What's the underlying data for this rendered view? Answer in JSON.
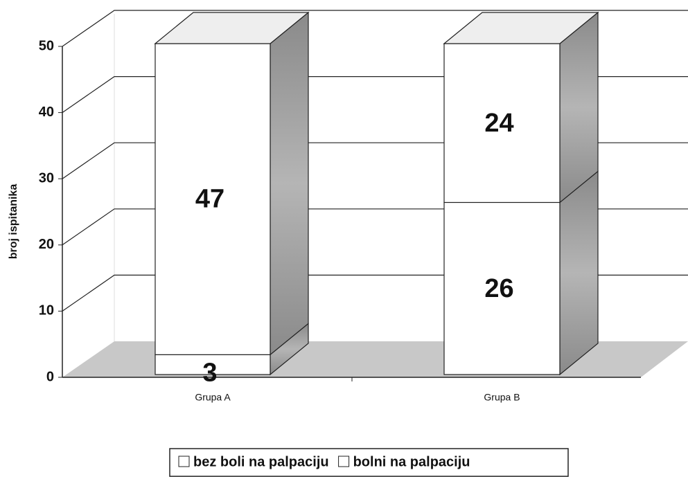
{
  "chart_data": {
    "type": "bar3d_stacked",
    "categories": [
      "Grupa A",
      "Grupa B"
    ],
    "series": [
      {
        "name": "bez boli na palpaciju",
        "color": "#ffffff",
        "values": [
          3,
          26
        ]
      },
      {
        "name": "bolni na palpaciju",
        "color": "#ffffff",
        "values": [
          47,
          24
        ]
      }
    ],
    "ylabel": "broj ispitanika",
    "ylim": [
      0,
      50
    ],
    "yticks": [
      0,
      10,
      20,
      30,
      40,
      50
    ],
    "grid": true,
    "legend": "bottom"
  }
}
